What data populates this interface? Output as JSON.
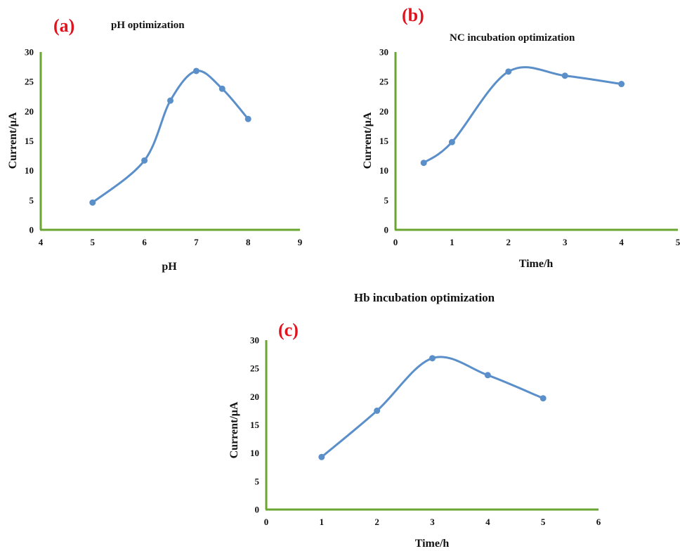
{
  "colors": {
    "axis": "#6aa632",
    "series": "#5b8fc9",
    "panel_tag": "#e0141e"
  },
  "chart_data": [
    {
      "type": "line",
      "panel": "(a)",
      "title": "pH optimization",
      "xlabel": "pH",
      "ylabel": "Current/μA",
      "xlim": [
        4,
        9
      ],
      "ylim": [
        0,
        30
      ],
      "xticks": [
        "4",
        "5",
        "6",
        "7",
        "8",
        "9"
      ],
      "yticks": [
        "0",
        "5",
        "10",
        "15",
        "20",
        "25",
        "30"
      ],
      "series": [
        {
          "x": [
            5,
            6,
            6.5,
            7,
            7.5,
            8
          ],
          "values": [
            4.6,
            11.7,
            21.8,
            26.8,
            23.8,
            18.7
          ]
        }
      ],
      "smooth": true,
      "grid": false,
      "legend": "none"
    },
    {
      "type": "line",
      "panel": "(b)",
      "title": "NC incubation optimization",
      "xlabel": "Time/h",
      "ylabel": "Current/μA",
      "xlim": [
        0,
        5
      ],
      "ylim": [
        0,
        30
      ],
      "xticks": [
        "0",
        "1",
        "2",
        "3",
        "4",
        "5"
      ],
      "yticks": [
        "0",
        "5",
        "10",
        "15",
        "20",
        "25",
        "30"
      ],
      "series": [
        {
          "x": [
            0.5,
            1,
            2,
            3,
            4
          ],
          "values": [
            11.3,
            14.8,
            26.7,
            26.0,
            24.6
          ]
        }
      ],
      "smooth": true,
      "grid": false,
      "legend": "none"
    },
    {
      "type": "line",
      "panel": "(c)",
      "title": "Hb incubation optimization",
      "xlabel": "Time/h",
      "ylabel": "Current/μA",
      "xlim": [
        0,
        6
      ],
      "ylim": [
        0,
        30
      ],
      "xticks": [
        "0",
        "1",
        "2",
        "3",
        "4",
        "5",
        "6"
      ],
      "yticks": [
        "0",
        "5",
        "10",
        "15",
        "20",
        "25",
        "30"
      ],
      "series": [
        {
          "x": [
            1,
            2,
            3,
            4,
            5
          ],
          "values": [
            9.3,
            17.5,
            26.8,
            23.8,
            19.7
          ]
        }
      ],
      "smooth": true,
      "grid": false,
      "legend": "none"
    }
  ]
}
